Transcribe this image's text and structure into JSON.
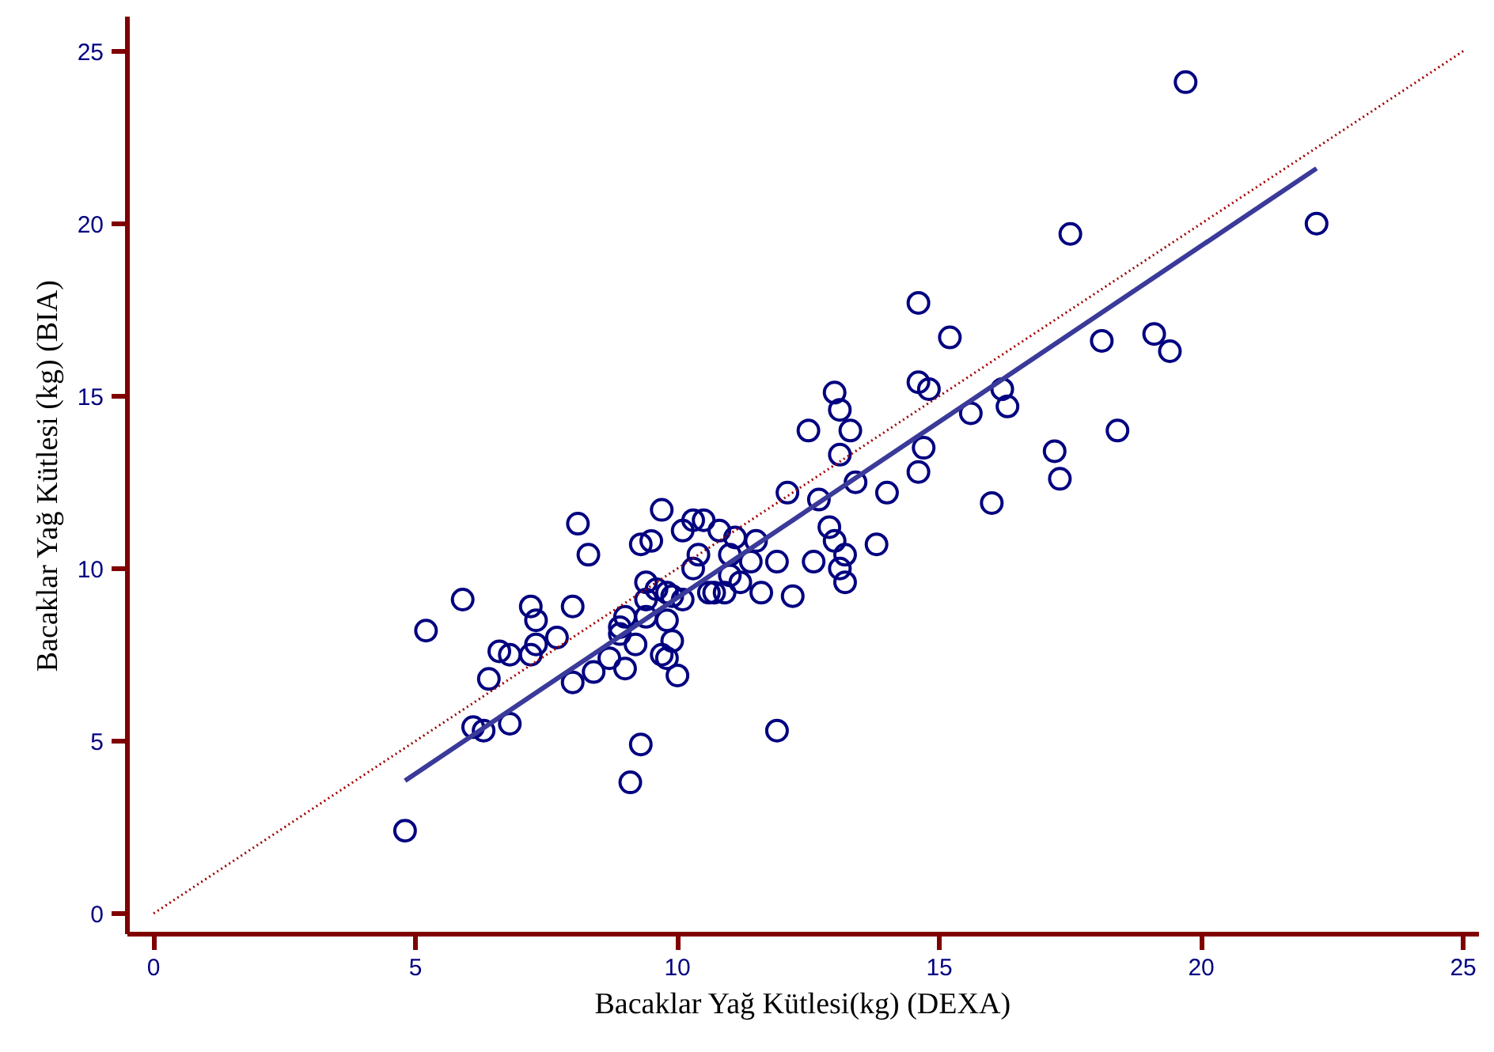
{
  "chart_data": {
    "type": "scatter",
    "xlabel": "Bacaklar Yağ Kütlesi(kg) (DEXA)",
    "ylabel": "Bacaklar Yağ Kütlesi (kg) (BIA)",
    "xlim": [
      -0.5,
      25.3
    ],
    "ylim": [
      -0.6,
      26
    ],
    "xticks": [
      0,
      5,
      10,
      15,
      20,
      25
    ],
    "yticks": [
      0,
      5,
      10,
      15,
      20,
      25
    ],
    "grid": false,
    "series": [
      {
        "color": "#000080",
        "marker": "circle",
        "x": [
          4.8,
          5.2,
          5.9,
          6.1,
          6.3,
          6.4,
          6.6,
          6.8,
          6.8,
          7.2,
          7.2,
          7.3,
          7.3,
          7.7,
          8.0,
          8.0,
          8.1,
          8.3,
          8.4,
          8.7,
          8.9,
          8.9,
          9.0,
          9.0,
          9.1,
          9.2,
          9.3,
          9.3,
          9.4,
          9.4,
          9.4,
          9.5,
          9.6,
          9.7,
          9.7,
          9.8,
          9.8,
          9.8,
          9.9,
          9.9,
          10.0,
          10.1,
          10.1,
          10.3,
          10.3,
          10.4,
          10.5,
          10.6,
          10.7,
          10.8,
          10.9,
          11.0,
          11.0,
          11.1,
          11.2,
          11.4,
          11.5,
          11.6,
          11.9,
          11.9,
          12.1,
          12.2,
          12.5,
          12.6,
          12.7,
          12.9,
          13.0,
          13.0,
          13.1,
          13.1,
          13.1,
          13.2,
          13.2,
          13.3,
          13.4,
          13.8,
          14.0,
          14.6,
          14.6,
          14.6,
          14.7,
          14.8,
          15.2,
          15.6,
          16.0,
          16.2,
          16.3,
          17.2,
          17.3,
          17.5,
          18.1,
          18.4,
          19.1,
          19.4,
          19.7,
          22.2
        ],
        "values": [
          2.4,
          8.2,
          9.1,
          5.4,
          5.3,
          6.8,
          7.6,
          7.5,
          5.5,
          8.9,
          7.5,
          8.5,
          7.8,
          8.0,
          8.9,
          6.7,
          11.3,
          10.4,
          7.0,
          7.4,
          8.1,
          8.3,
          8.6,
          7.1,
          3.8,
          7.8,
          4.9,
          10.7,
          9.6,
          9.1,
          8.6,
          10.8,
          9.4,
          7.5,
          11.7,
          8.5,
          7.4,
          9.3,
          7.9,
          9.2,
          6.9,
          9.1,
          11.1,
          11.4,
          10.0,
          10.4,
          11.4,
          9.3,
          9.3,
          11.1,
          9.3,
          10.4,
          9.8,
          10.9,
          9.6,
          10.2,
          10.8,
          9.3,
          10.2,
          5.3,
          12.2,
          9.2,
          14.0,
          10.2,
          12.0,
          11.2,
          15.1,
          10.8,
          14.6,
          13.3,
          10.0,
          10.4,
          9.6,
          14.0,
          12.5,
          10.7,
          12.2,
          17.7,
          15.4,
          12.8,
          13.5,
          15.2,
          16.7,
          14.5,
          11.9,
          15.2,
          14.7,
          13.4,
          12.6,
          19.7,
          16.6,
          14.0,
          16.8,
          16.3,
          24.1,
          20.0
        ]
      },
      {
        "type": "line",
        "color": "#3a3a9a",
        "line_style": "solid",
        "x": [
          4.8,
          22.2
        ],
        "values": [
          3.85,
          21.6
        ]
      },
      {
        "type": "line",
        "color": "#a00000",
        "line_style": "dotted",
        "x": [
          0,
          25
        ],
        "values": [
          0,
          25
        ]
      }
    ]
  }
}
